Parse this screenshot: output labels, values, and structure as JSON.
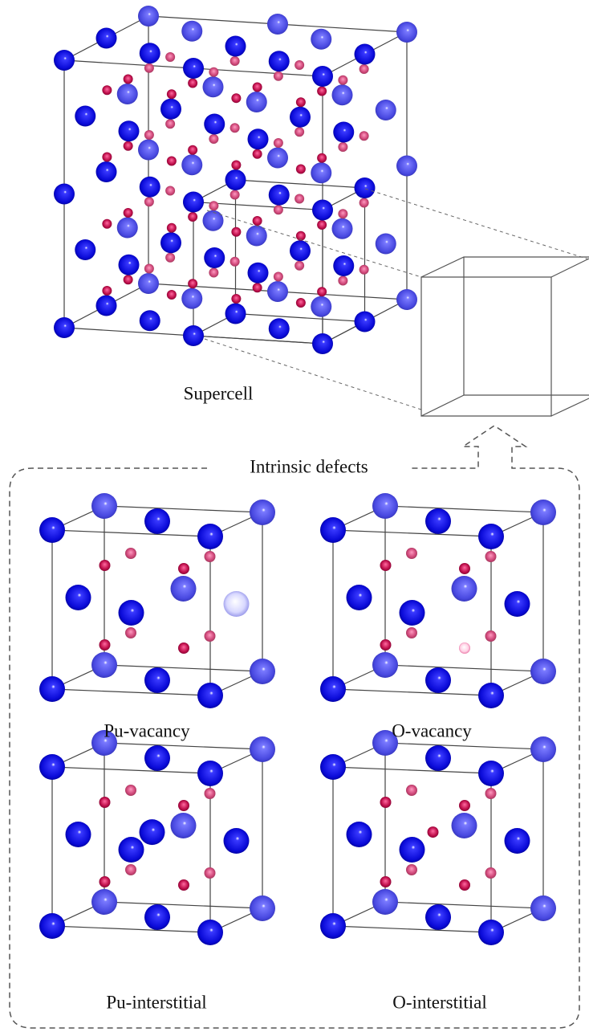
{
  "supercell": {
    "label": "Supercell"
  },
  "defects": {
    "title": "Intrinsic defects",
    "panels": [
      {
        "label": "Pu-vacancy"
      },
      {
        "label": "O-vacancy"
      },
      {
        "label": "Pu-interstitial"
      },
      {
        "label": "O-interstitial"
      }
    ]
  }
}
